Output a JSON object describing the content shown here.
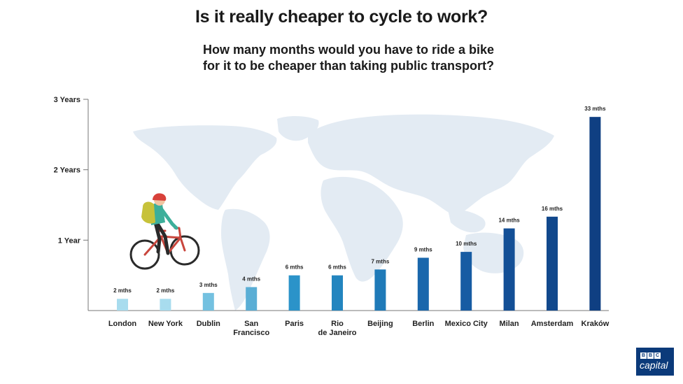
{
  "header": {
    "title": "Is it really cheaper to cycle to work?",
    "subtitle_line1": "How many months would you have to ride a bike",
    "subtitle_line2": "for it to be cheaper than taking public transport?"
  },
  "logo": {
    "letters": [
      "B",
      "B",
      "C"
    ],
    "word": "capital"
  },
  "chart_data": {
    "type": "bar",
    "title": "Is it really cheaper to cycle to work?",
    "subtitle": "How many months would you have to ride a bike for it to be cheaper than taking public transport?",
    "categories": [
      "London",
      "New York",
      "Dublin",
      "San Francisco",
      "Paris",
      "Rio de Janeiro",
      "Beijing",
      "Berlin",
      "Mexico City",
      "Milan",
      "Amsterdam",
      "Kraków"
    ],
    "category_lines": [
      [
        "London"
      ],
      [
        "New York"
      ],
      [
        "Dublin"
      ],
      [
        "San",
        "Francisco"
      ],
      [
        "Paris"
      ],
      [
        "Rio",
        "de Janeiro"
      ],
      [
        "Beijing"
      ],
      [
        "Berlin"
      ],
      [
        "Mexico City"
      ],
      [
        "Milan"
      ],
      [
        "Amsterdam"
      ],
      [
        "Kraków"
      ]
    ],
    "values": [
      2,
      2,
      3,
      4,
      6,
      6,
      7,
      9,
      10,
      14,
      16,
      33
    ],
    "data_labels": [
      "2 mths",
      "2 mths",
      "3 mths",
      "4 mths",
      "6 mths",
      "6 mths",
      "7 mths",
      "9 mths",
      "10 mths",
      "14 mths",
      "16 mths",
      "33 mths"
    ],
    "bar_colors": [
      "#a8dcee",
      "#a8dcee",
      "#74c1e0",
      "#5aaed5",
      "#2b93c9",
      "#2385bf",
      "#1f7ab8",
      "#1a67ac",
      "#175ca3",
      "#134f96",
      "#11488c",
      "#0f3f82"
    ],
    "y_ticks": [
      {
        "value": 12,
        "label": "1 Year"
      },
      {
        "value": 24,
        "label": "2 Years"
      },
      {
        "value": 36,
        "label": "3 Years"
      }
    ],
    "ylim": [
      0,
      36
    ],
    "xlabel": "",
    "ylabel": "",
    "grid": false,
    "legend": "none",
    "background_image": "world-map",
    "decoration": "cyclist-illustration"
  }
}
